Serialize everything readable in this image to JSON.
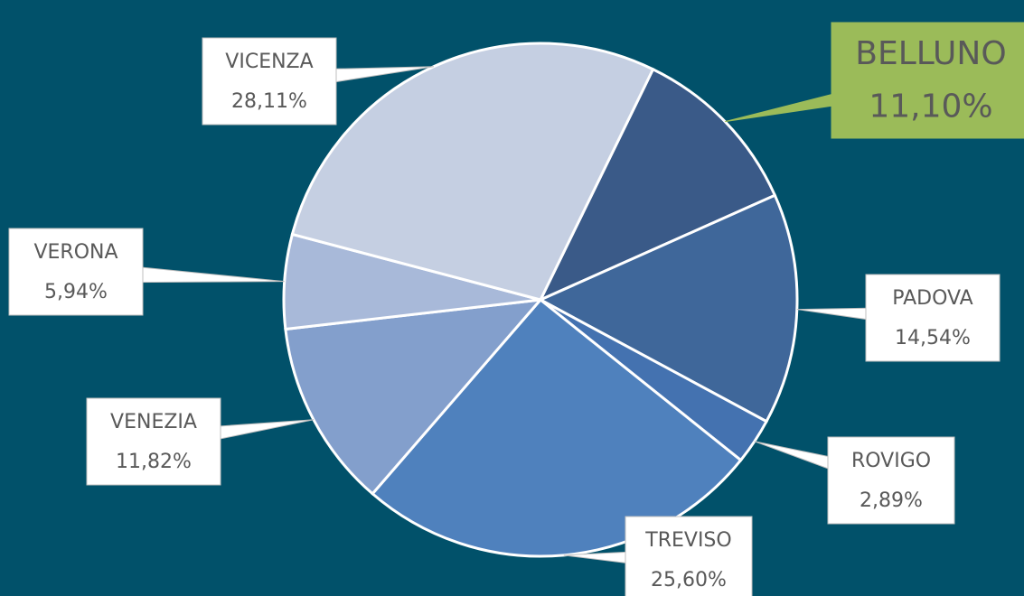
{
  "chart_data": {
    "type": "pie",
    "categories": [
      "BELLUNO",
      "PADOVA",
      "ROVIGO",
      "TREVISO",
      "VENEZIA",
      "VERONA",
      "VICENZA"
    ],
    "values": [
      11.1,
      14.54,
      2.89,
      25.6,
      11.82,
      5.94,
      28.11
    ],
    "value_labels": [
      "11,10%",
      "14,54%",
      "2,89%",
      "25,60%",
      "11,82%",
      "5,94%",
      "28,11%"
    ],
    "colors": [
      "#3a5a88",
      "#3f679a",
      "#4472b0",
      "#4f81bd",
      "#839fcc",
      "#a8b9d9",
      "#c5cfe2"
    ]
  }
}
